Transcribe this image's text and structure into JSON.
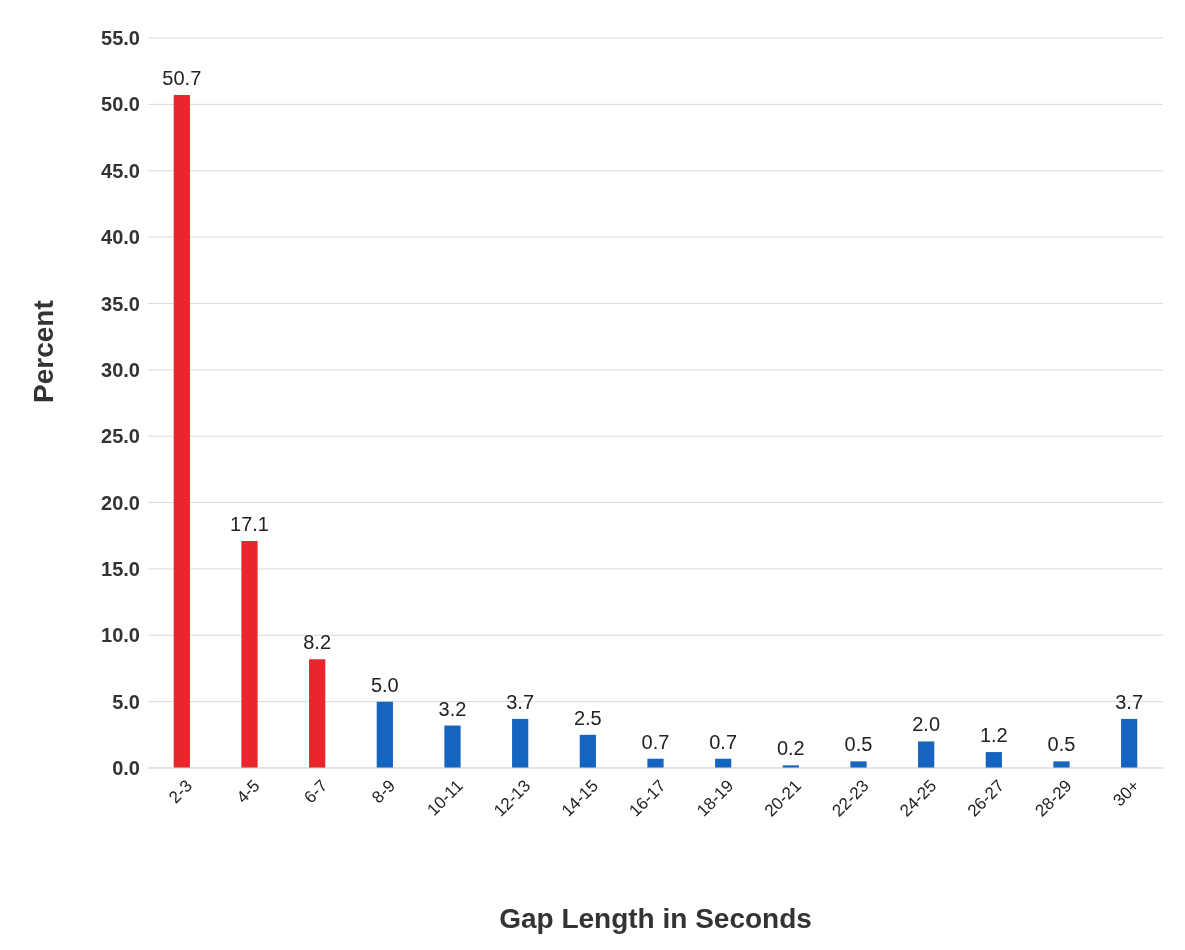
{
  "chart_data": {
    "type": "bar",
    "xlabel": "Gap Length in Seconds",
    "ylabel": "Percent",
    "categories": [
      "2-3",
      "4-5",
      "6-7",
      "8-9",
      "10-11",
      "12-13",
      "14-15",
      "16-17",
      "18-19",
      "20-21",
      "22-23",
      "24-25",
      "26-27",
      "28-29",
      "30+"
    ],
    "values": [
      50.7,
      17.1,
      8.2,
      5.0,
      3.2,
      3.7,
      2.5,
      0.7,
      0.7,
      0.2,
      0.5,
      2.0,
      1.2,
      0.5,
      3.7
    ],
    "colors": [
      "#e8262c",
      "#e8262c",
      "#e8262c",
      "#1565c0",
      "#1565c0",
      "#1565c0",
      "#1565c0",
      "#1565c0",
      "#1565c0",
      "#1565c0",
      "#1565c0",
      "#1565c0",
      "#1565c0",
      "#1565c0",
      "#1565c0"
    ],
    "value_labels": [
      "50.7",
      "17.1",
      "8.2",
      "5.0",
      "3.2",
      "3.7",
      "2.5",
      "0.7",
      "0.7",
      "0.2",
      "0.5",
      "2.0",
      "1.2",
      "0.5",
      "3.7"
    ],
    "ylim": [
      0,
      55
    ],
    "yticks": [
      {
        "value": 0,
        "label": "0.0"
      },
      {
        "value": 5,
        "label": "5.0"
      },
      {
        "value": 10,
        "label": "10.0"
      },
      {
        "value": 15,
        "label": "15.0"
      },
      {
        "value": 20,
        "label": "20.0"
      },
      {
        "value": 25,
        "label": "25.0"
      },
      {
        "value": 30,
        "label": "30.0"
      },
      {
        "value": 35,
        "label": "35.0"
      },
      {
        "value": 40,
        "label": "40.0"
      },
      {
        "value": 45,
        "label": "45.0"
      },
      {
        "value": 50,
        "label": "50.0"
      },
      {
        "value": 55,
        "label": "55.0"
      }
    ],
    "grid": "y",
    "legend": false
  }
}
